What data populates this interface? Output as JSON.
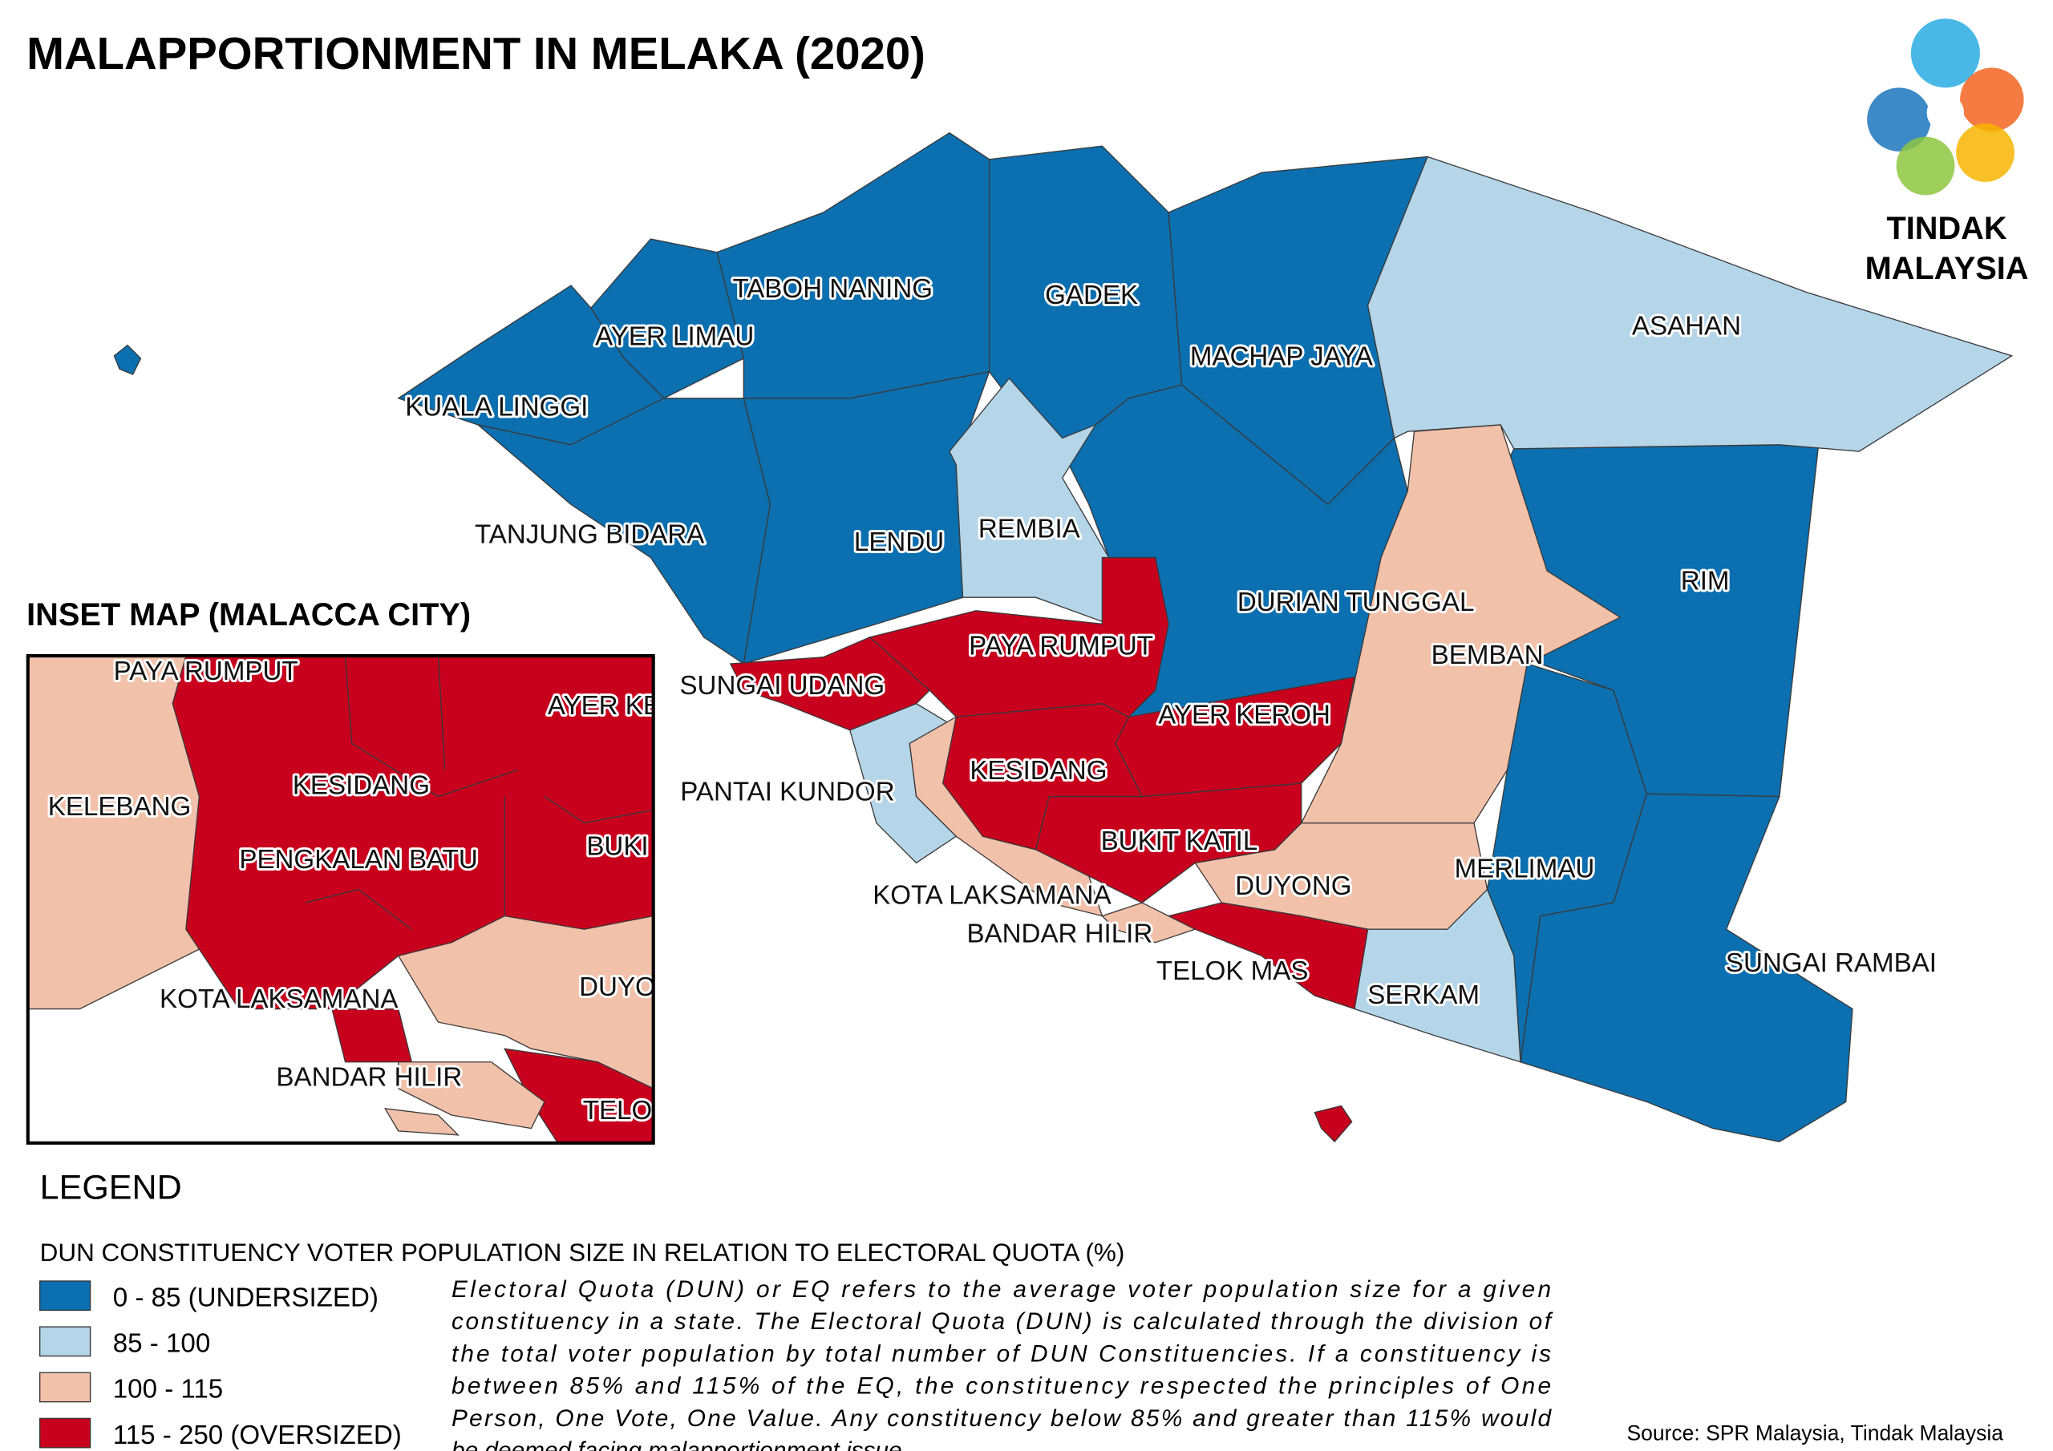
{
  "title": "MALAPPORTIONMENT IN MELAKA (2020)",
  "logo": [
    "TINDAK",
    "MALAYSIA"
  ],
  "inset": {
    "title": "INSET MAP (MALACCA CITY)",
    "labels": [
      "PAYA RUMPUT",
      "AYER KE",
      "KESIDANG",
      "KELEBANG",
      "PENGKALAN BATU",
      "BUKI",
      "KOTA LAKSAMANA",
      "DUYO",
      "BANDAR HILIR",
      "TELO"
    ]
  },
  "legend": {
    "title": "LEGEND",
    "subtitle": "DUN CONSTITUENCY VOTER POPULATION SIZE IN RELATION TO ELECTORAL QUOTA (%)",
    "items": [
      {
        "label": "0 - 85 (UNDERSIZED)",
        "color": "#0b6fb0",
        "regions": [
          "KUALA LINGGI",
          "AYER LIMAU",
          "TANJUNG BIDARA",
          "TABOH NANING",
          "LENDU",
          "GADEK",
          "MACHAP JAYA",
          "DURIAN TUNGGAL",
          "RIM",
          "MERLIMAU",
          "SUNGAI RAMBAI"
        ]
      },
      {
        "label": "85 - 100",
        "color": "#b5d5e8",
        "regions": [
          "ASAHAN",
          "REMBIA",
          "SERKAM",
          "PANTAI KUNDOR"
        ]
      },
      {
        "label": "100 - 115",
        "color": "#f2c1aa",
        "regions": [
          "BEMBAN",
          "DUYONG",
          "KOTA LAKSAMANA",
          "BANDAR HILIR"
        ]
      },
      {
        "label": "115 - 250 (OVERSIZED)",
        "color": "#c8001e",
        "regions": [
          "TELOK MAS",
          "BUKIT KATIL",
          "AYER KEROH",
          "KESIDANG",
          "PAYA RUMPUT",
          "SUNGAI UDANG"
        ]
      }
    ]
  },
  "note": [
    "Electoral Quota (DUN) or EQ refers to the average voter population size for a given",
    "constituency in a state. The Electoral Quota (DUN) is calculated through the division of",
    "the total voter population by total number of DUN Constituencies. If a constituency is",
    "between 85% and 115% of the EQ, the constituency respected the principles of One",
    "Person, One Vote, One Value. Any constituency below 85% and greater than 115% would",
    "be deemed facing malapportionment issue."
  ],
  "source": "Source: SPR Malaysia, Tindak Malaysia"
}
